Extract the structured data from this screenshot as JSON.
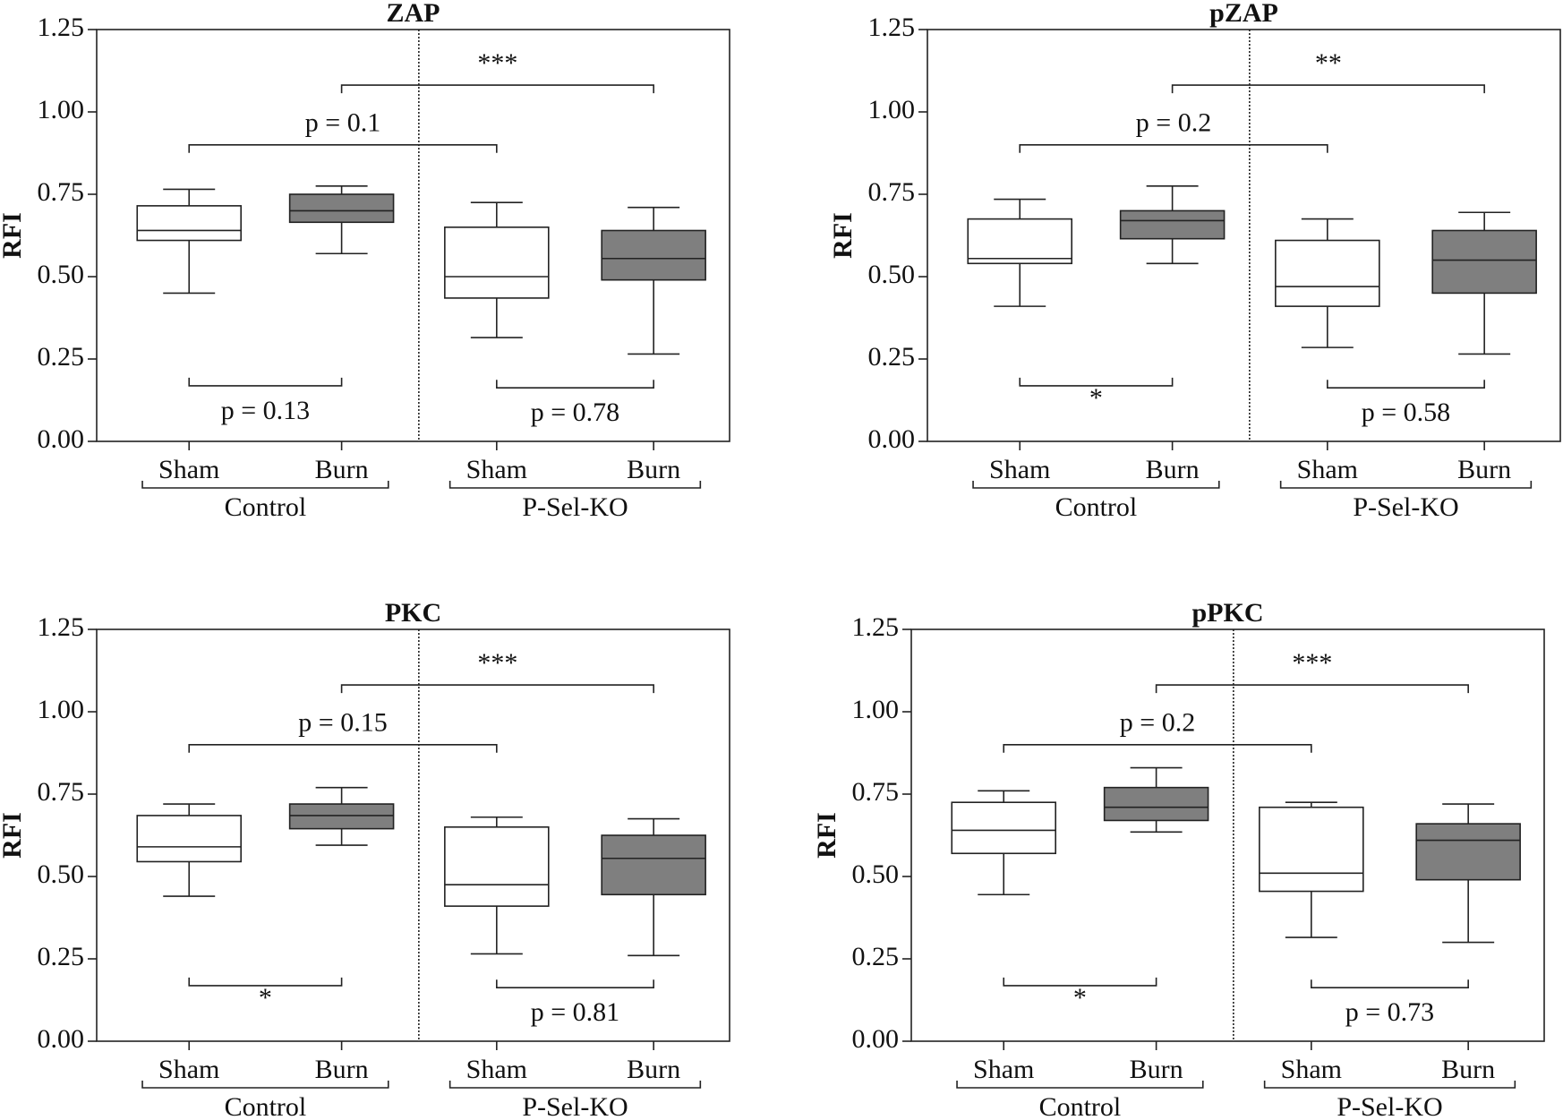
{
  "chart_data": [
    {
      "type": "box",
      "title": "ZAP",
      "ylabel": "RFI",
      "ylim": [
        0,
        1.25
      ],
      "yticks": [
        {
          "value": 0,
          "label": "0.00"
        },
        {
          "value": 0.25,
          "label": "0.25"
        },
        {
          "value": 0.5,
          "label": "0.50"
        },
        {
          "value": 0.75,
          "label": "0.75"
        },
        {
          "value": 1,
          "label": "1.00"
        },
        {
          "value": 1.25,
          "label": "1.25"
        }
      ],
      "categories": [
        "Sham",
        "Burn",
        "Sham",
        "Burn"
      ],
      "groups": [
        "Control",
        "P-Sel-KO"
      ],
      "box_colors": [
        "#ffffff",
        "#7f7f7f",
        "#ffffff",
        "#7f7f7f"
      ],
      "boxes": [
        {
          "min": 0.45,
          "q1": 0.61,
          "median": 0.64,
          "q3": 0.715,
          "max": 0.765
        },
        {
          "min": 0.57,
          "q1": 0.665,
          "median": 0.7,
          "q3": 0.75,
          "max": 0.775
        },
        {
          "min": 0.315,
          "q1": 0.435,
          "median": 0.5,
          "q3": 0.65,
          "max": 0.725
        },
        {
          "min": 0.265,
          "q1": 0.49,
          "median": 0.555,
          "q3": 0.64,
          "max": 0.71
        }
      ],
      "annotations": [
        "***",
        "p = 0.1",
        "p = 0.13",
        "p = 0.78"
      ]
    },
    {
      "type": "box",
      "title": "pZAP",
      "ylabel": "RFI",
      "ylim": [
        0,
        1.25
      ],
      "yticks": [
        {
          "value": 0,
          "label": "0.00"
        },
        {
          "value": 0.25,
          "label": "0.25"
        },
        {
          "value": 0.5,
          "label": "0.50"
        },
        {
          "value": 0.75,
          "label": "0.75"
        },
        {
          "value": 1,
          "label": "1.00"
        },
        {
          "value": 1.25,
          "label": "1.25"
        }
      ],
      "categories": [
        "Sham",
        "Burn",
        "Sham",
        "Burn"
      ],
      "groups": [
        "Control",
        "P-Sel-KO"
      ],
      "box_colors": [
        "#ffffff",
        "#7f7f7f",
        "#ffffff",
        "#7f7f7f"
      ],
      "boxes": [
        {
          "min": 0.41,
          "q1": 0.54,
          "median": 0.555,
          "q3": 0.675,
          "max": 0.735
        },
        {
          "min": 0.54,
          "q1": 0.615,
          "median": 0.67,
          "q3": 0.7,
          "max": 0.775
        },
        {
          "min": 0.285,
          "q1": 0.41,
          "median": 0.47,
          "q3": 0.61,
          "max": 0.675
        },
        {
          "min": 0.265,
          "q1": 0.45,
          "median": 0.55,
          "q3": 0.64,
          "max": 0.695
        }
      ],
      "annotations": [
        "**",
        "p = 0.2",
        "*",
        "p = 0.58"
      ]
    },
    {
      "type": "box",
      "title": "PKC",
      "ylabel": "RFI",
      "ylim": [
        0,
        1.25
      ],
      "yticks": [
        {
          "value": 0,
          "label": "0.00"
        },
        {
          "value": 0.25,
          "label": "0.25"
        },
        {
          "value": 0.5,
          "label": "0.50"
        },
        {
          "value": 0.75,
          "label": "0.75"
        },
        {
          "value": 1,
          "label": "1.00"
        },
        {
          "value": 1.25,
          "label": "1.25"
        }
      ],
      "categories": [
        "Sham",
        "Burn",
        "Sham",
        "Burn"
      ],
      "groups": [
        "Control",
        "P-Sel-KO"
      ],
      "box_colors": [
        "#ffffff",
        "#7f7f7f",
        "#ffffff",
        "#7f7f7f"
      ],
      "boxes": [
        {
          "min": 0.44,
          "q1": 0.545,
          "median": 0.59,
          "q3": 0.685,
          "max": 0.72
        },
        {
          "min": 0.595,
          "q1": 0.645,
          "median": 0.685,
          "q3": 0.72,
          "max": 0.77
        },
        {
          "min": 0.265,
          "q1": 0.41,
          "median": 0.475,
          "q3": 0.65,
          "max": 0.68
        },
        {
          "min": 0.26,
          "q1": 0.445,
          "median": 0.555,
          "q3": 0.625,
          "max": 0.675
        }
      ],
      "annotations": [
        "***",
        "p = 0.15",
        "*",
        "p = 0.81"
      ]
    },
    {
      "type": "box",
      "title": "pPKC",
      "ylabel": "RFI",
      "ylim": [
        0,
        1.25
      ],
      "yticks": [
        {
          "value": 0,
          "label": "0.00"
        },
        {
          "value": 0.25,
          "label": "0.25"
        },
        {
          "value": 0.5,
          "label": "0.50"
        },
        {
          "value": 0.75,
          "label": "0.75"
        },
        {
          "value": 1,
          "label": "1.00"
        },
        {
          "value": 1.25,
          "label": "1.25"
        }
      ],
      "categories": [
        "Sham",
        "Burn",
        "Sham",
        "Burn"
      ],
      "groups": [
        "Control",
        "P-Sel-KO"
      ],
      "box_colors": [
        "#ffffff",
        "#7f7f7f",
        "#ffffff",
        "#7f7f7f"
      ],
      "boxes": [
        {
          "min": 0.445,
          "q1": 0.57,
          "median": 0.64,
          "q3": 0.725,
          "max": 0.76
        },
        {
          "min": 0.635,
          "q1": 0.67,
          "median": 0.71,
          "q3": 0.77,
          "max": 0.83
        },
        {
          "min": 0.315,
          "q1": 0.455,
          "median": 0.51,
          "q3": 0.71,
          "max": 0.725
        },
        {
          "min": 0.3,
          "q1": 0.49,
          "median": 0.61,
          "q3": 0.66,
          "max": 0.72
        }
      ],
      "annotations": [
        "***",
        "p = 0.2",
        "*",
        "p = 0.73"
      ]
    }
  ]
}
